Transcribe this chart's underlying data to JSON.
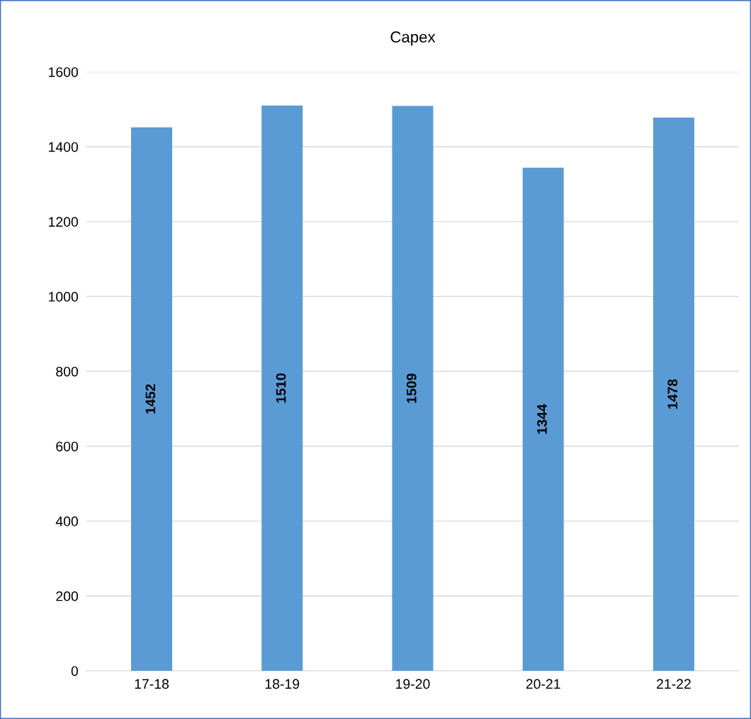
{
  "chart_data": {
    "type": "bar",
    "title": "Capex",
    "categories": [
      "17-18",
      "18-19",
      "19-20",
      "20-21",
      "21-22"
    ],
    "values": [
      1452,
      1510,
      1509,
      1344,
      1478
    ],
    "color": "#5b9bd5",
    "ylim": [
      0,
      1600
    ],
    "yticks": [
      0,
      200,
      400,
      600,
      800,
      1000,
      1200,
      1400,
      1600
    ],
    "grid": "y",
    "data_labels": true
  }
}
